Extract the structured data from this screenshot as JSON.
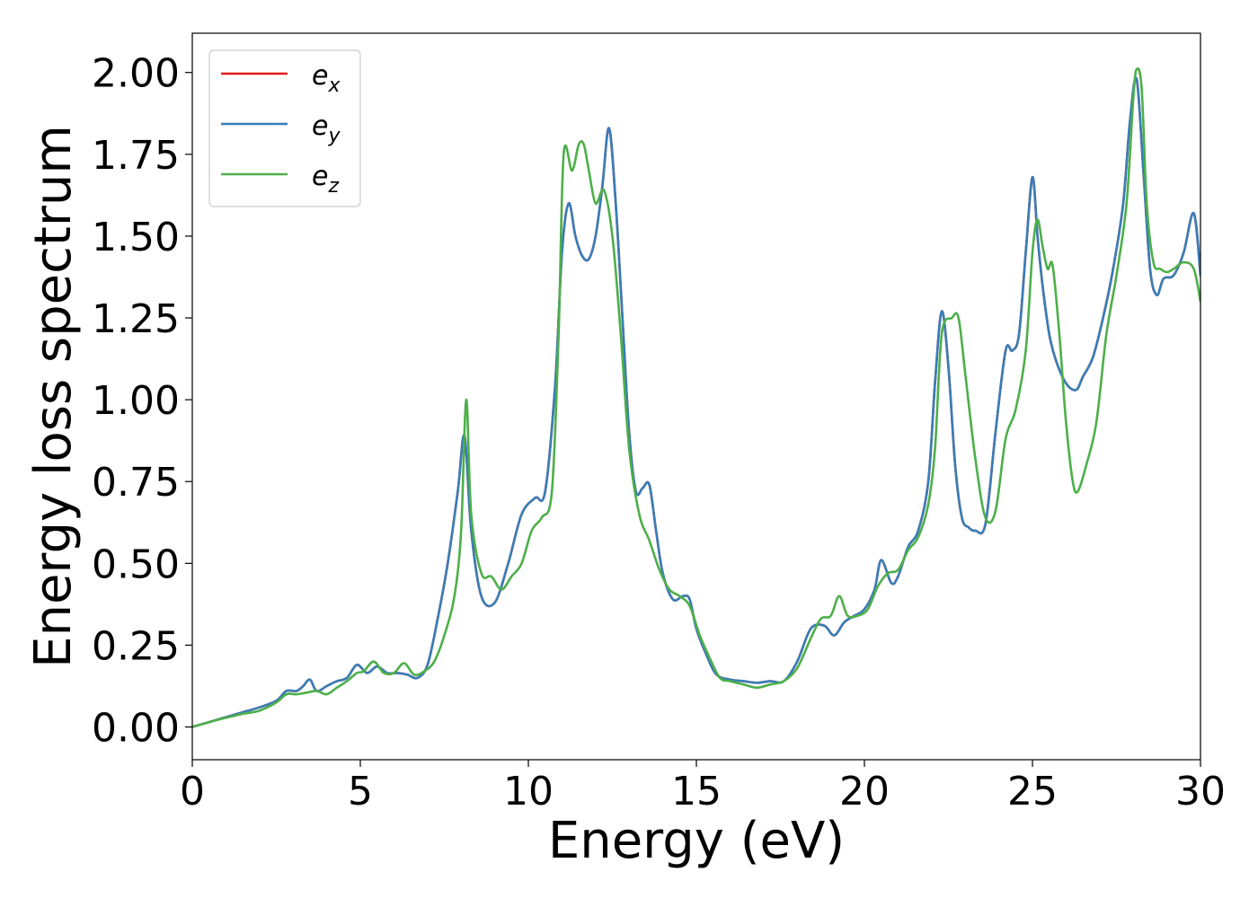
{
  "chart_data": {
    "type": "line",
    "xlabel": "Energy (eV)",
    "ylabel": "Energy loss spectrum",
    "xlim": [
      0,
      30
    ],
    "ylim": [
      -0.1,
      2.12
    ],
    "xticks": [
      0,
      5,
      10,
      15,
      20,
      25,
      30
    ],
    "xtick_labels": [
      "0",
      "5",
      "10",
      "15",
      "20",
      "25",
      "30"
    ],
    "yticks": [
      0.0,
      0.25,
      0.5,
      0.75,
      1.0,
      1.25,
      1.5,
      1.75,
      2.0
    ],
    "ytick_labels": [
      "0.00",
      "0.25",
      "0.50",
      "0.75",
      "1.00",
      "1.25",
      "1.50",
      "1.75",
      "2.00"
    ],
    "grid": false,
    "legend_position": "top-left",
    "series": [
      {
        "name": "e",
        "subscript": "x",
        "color": "#e41a1c",
        "x": [
          0,
          0.5,
          1,
          1.5,
          2,
          2.5,
          2.8,
          3.1,
          3.3,
          3.5,
          3.7,
          4,
          4.3,
          4.6,
          4.9,
          5.2,
          5.5,
          5.8,
          6.1,
          6.4,
          6.7,
          7,
          7.3,
          7.6,
          7.9,
          8.1,
          8.3,
          8.6,
          9,
          9.4,
          9.8,
          10.2,
          10.5,
          10.8,
          11,
          11.2,
          11.4,
          11.6,
          11.8,
          12,
          12.2,
          12.4,
          12.6,
          12.8,
          13,
          13.2,
          13.4,
          13.6,
          13.8,
          14,
          14.3,
          14.6,
          14.8,
          15,
          15.3,
          15.6,
          16,
          16.4,
          16.8,
          17.2,
          17.6,
          18,
          18.4,
          18.8,
          19.1,
          19.4,
          19.7,
          20,
          20.3,
          20.5,
          20.8,
          21,
          21.3,
          21.6,
          21.9,
          22.1,
          22.3,
          22.5,
          22.7,
          22.9,
          23.1,
          23.3,
          23.6,
          23.9,
          24.2,
          24.4,
          24.6,
          24.8,
          25,
          25.15,
          25.3,
          25.5,
          25.7,
          26,
          26.3,
          26.5,
          26.8,
          27.1,
          27.4,
          27.7,
          27.9,
          28.1,
          28.3,
          28.5,
          28.7,
          28.9,
          29.2,
          29.5,
          29.8,
          30
        ],
        "y": [
          0,
          0.015,
          0.03,
          0.045,
          0.06,
          0.08,
          0.11,
          0.11,
          0.125,
          0.145,
          0.11,
          0.125,
          0.14,
          0.15,
          0.19,
          0.165,
          0.185,
          0.165,
          0.165,
          0.16,
          0.15,
          0.19,
          0.33,
          0.5,
          0.72,
          0.89,
          0.6,
          0.4,
          0.38,
          0.5,
          0.65,
          0.7,
          0.72,
          1.05,
          1.45,
          1.6,
          1.5,
          1.44,
          1.43,
          1.5,
          1.65,
          1.83,
          1.6,
          1.25,
          0.9,
          0.72,
          0.73,
          0.74,
          0.6,
          0.47,
          0.39,
          0.4,
          0.39,
          0.3,
          0.22,
          0.16,
          0.145,
          0.14,
          0.135,
          0.14,
          0.14,
          0.2,
          0.3,
          0.31,
          0.28,
          0.32,
          0.34,
          0.36,
          0.42,
          0.51,
          0.44,
          0.46,
          0.55,
          0.6,
          0.75,
          1.05,
          1.27,
          1.1,
          0.8,
          0.64,
          0.61,
          0.6,
          0.62,
          0.9,
          1.15,
          1.15,
          1.2,
          1.45,
          1.68,
          1.5,
          1.35,
          1.2,
          1.12,
          1.05,
          1.03,
          1.07,
          1.13,
          1.25,
          1.4,
          1.6,
          1.85,
          1.98,
          1.7,
          1.4,
          1.32,
          1.37,
          1.38,
          1.45,
          1.57,
          1.38
        ]
      },
      {
        "name": "e",
        "subscript": "y",
        "color": "#377eb8",
        "x": [
          0,
          0.5,
          1,
          1.5,
          2,
          2.5,
          2.8,
          3.1,
          3.3,
          3.5,
          3.7,
          4,
          4.3,
          4.6,
          4.9,
          5.2,
          5.5,
          5.8,
          6.1,
          6.4,
          6.7,
          7,
          7.3,
          7.6,
          7.9,
          8.1,
          8.3,
          8.6,
          9,
          9.4,
          9.8,
          10.2,
          10.5,
          10.8,
          11,
          11.2,
          11.4,
          11.6,
          11.8,
          12,
          12.2,
          12.4,
          12.6,
          12.8,
          13,
          13.2,
          13.4,
          13.6,
          13.8,
          14,
          14.3,
          14.6,
          14.8,
          15,
          15.3,
          15.6,
          16,
          16.4,
          16.8,
          17.2,
          17.6,
          18,
          18.4,
          18.8,
          19.1,
          19.4,
          19.7,
          20,
          20.3,
          20.5,
          20.8,
          21,
          21.3,
          21.6,
          21.9,
          22.1,
          22.3,
          22.5,
          22.7,
          22.9,
          23.1,
          23.3,
          23.6,
          23.9,
          24.2,
          24.4,
          24.6,
          24.8,
          25,
          25.15,
          25.3,
          25.5,
          25.7,
          26,
          26.3,
          26.5,
          26.8,
          27.1,
          27.4,
          27.7,
          27.9,
          28.1,
          28.3,
          28.5,
          28.7,
          28.9,
          29.2,
          29.5,
          29.8,
          30
        ],
        "y": [
          0,
          0.015,
          0.03,
          0.045,
          0.06,
          0.08,
          0.11,
          0.11,
          0.125,
          0.145,
          0.11,
          0.125,
          0.14,
          0.15,
          0.19,
          0.165,
          0.185,
          0.165,
          0.165,
          0.16,
          0.15,
          0.19,
          0.33,
          0.5,
          0.72,
          0.89,
          0.6,
          0.4,
          0.38,
          0.5,
          0.65,
          0.7,
          0.72,
          1.05,
          1.45,
          1.6,
          1.5,
          1.44,
          1.43,
          1.5,
          1.65,
          1.83,
          1.6,
          1.25,
          0.9,
          0.72,
          0.73,
          0.74,
          0.6,
          0.47,
          0.39,
          0.4,
          0.39,
          0.3,
          0.22,
          0.16,
          0.145,
          0.14,
          0.135,
          0.14,
          0.14,
          0.2,
          0.3,
          0.31,
          0.28,
          0.32,
          0.34,
          0.36,
          0.42,
          0.51,
          0.44,
          0.46,
          0.55,
          0.6,
          0.75,
          1.05,
          1.27,
          1.1,
          0.8,
          0.64,
          0.61,
          0.6,
          0.62,
          0.9,
          1.15,
          1.15,
          1.2,
          1.45,
          1.68,
          1.5,
          1.35,
          1.2,
          1.12,
          1.05,
          1.03,
          1.07,
          1.13,
          1.25,
          1.4,
          1.6,
          1.85,
          1.98,
          1.7,
          1.4,
          1.32,
          1.37,
          1.38,
          1.45,
          1.57,
          1.38
        ]
      },
      {
        "name": "e",
        "subscript": "z",
        "color": "#4daf4a",
        "x": [
          0,
          0.5,
          1,
          1.5,
          2,
          2.5,
          2.8,
          3.1,
          3.4,
          3.7,
          4,
          4.3,
          4.6,
          4.9,
          5.1,
          5.4,
          5.7,
          6,
          6.3,
          6.6,
          6.9,
          7.2,
          7.5,
          7.8,
          8,
          8.15,
          8.3,
          8.6,
          8.9,
          9.2,
          9.5,
          9.8,
          10.1,
          10.4,
          10.7,
          10.9,
          11.05,
          11.3,
          11.5,
          11.65,
          11.8,
          12,
          12.25,
          12.5,
          12.75,
          13,
          13.3,
          13.6,
          13.9,
          14.2,
          14.5,
          14.8,
          15.1,
          15.4,
          15.7,
          16,
          16.4,
          16.8,
          17.2,
          17.6,
          18,
          18.4,
          18.7,
          19,
          19.25,
          19.5,
          19.8,
          20.1,
          20.4,
          20.7,
          21,
          21.3,
          21.6,
          21.9,
          22.1,
          22.3,
          22.6,
          22.8,
          23,
          23.3,
          23.6,
          23.9,
          24.2,
          24.5,
          24.8,
          25,
          25.15,
          25.3,
          25.45,
          25.6,
          25.8,
          26,
          26.2,
          26.35,
          26.6,
          26.9,
          27.2,
          27.5,
          27.8,
          28,
          28.1,
          28.25,
          28.4,
          28.6,
          28.8,
          29,
          29.2,
          29.5,
          29.8,
          30
        ],
        "y": [
          0,
          0.015,
          0.028,
          0.04,
          0.05,
          0.075,
          0.1,
          0.1,
          0.105,
          0.11,
          0.1,
          0.12,
          0.14,
          0.165,
          0.17,
          0.2,
          0.165,
          0.165,
          0.195,
          0.16,
          0.17,
          0.2,
          0.28,
          0.4,
          0.6,
          1.0,
          0.65,
          0.47,
          0.46,
          0.42,
          0.46,
          0.5,
          0.6,
          0.64,
          0.72,
          1.2,
          1.75,
          1.7,
          1.78,
          1.78,
          1.7,
          1.6,
          1.64,
          1.5,
          1.2,
          0.85,
          0.65,
          0.57,
          0.48,
          0.42,
          0.4,
          0.37,
          0.28,
          0.21,
          0.15,
          0.14,
          0.13,
          0.12,
          0.13,
          0.14,
          0.18,
          0.27,
          0.33,
          0.34,
          0.4,
          0.34,
          0.34,
          0.36,
          0.43,
          0.47,
          0.48,
          0.54,
          0.58,
          0.68,
          0.85,
          1.2,
          1.25,
          1.25,
          1.08,
          0.82,
          0.64,
          0.66,
          0.88,
          0.97,
          1.15,
          1.45,
          1.55,
          1.47,
          1.4,
          1.41,
          1.2,
          0.93,
          0.75,
          0.72,
          0.8,
          0.93,
          1.2,
          1.38,
          1.6,
          1.92,
          2.01,
          1.95,
          1.6,
          1.42,
          1.4,
          1.39,
          1.4,
          1.42,
          1.4,
          1.3
        ]
      }
    ]
  }
}
